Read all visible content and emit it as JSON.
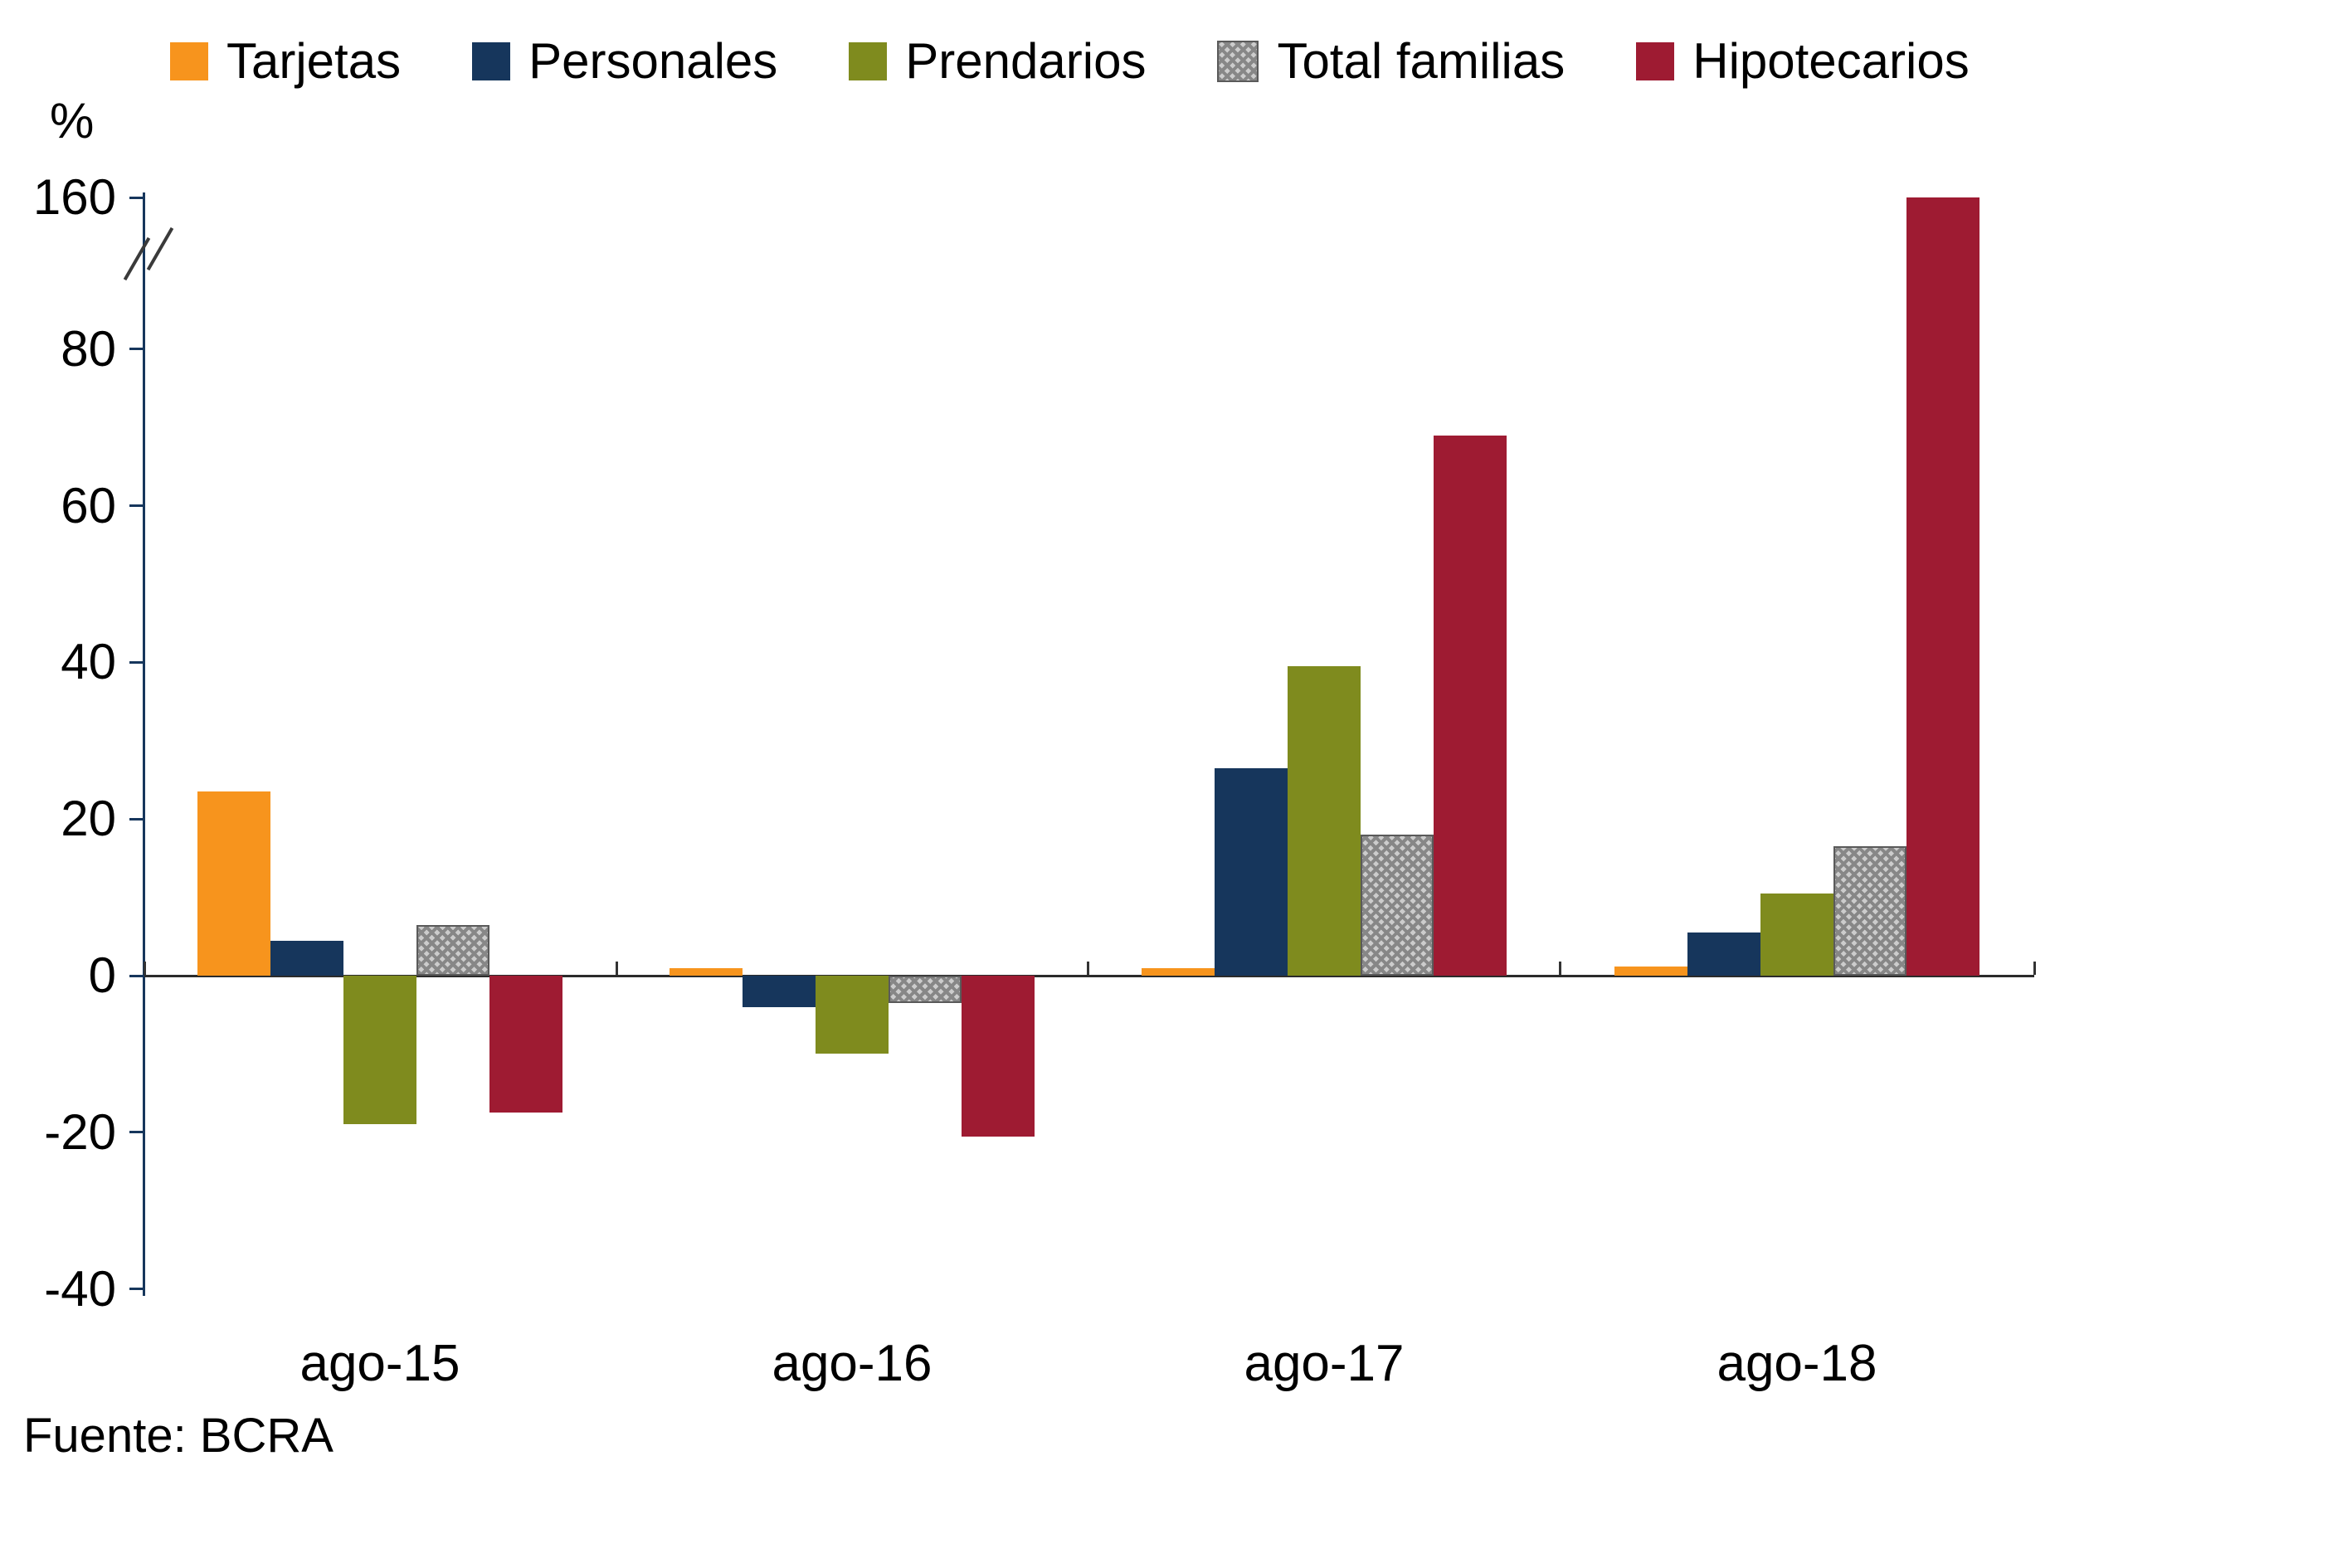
{
  "chart_data": {
    "type": "bar",
    "unit_label": "%",
    "categories": [
      "ago-15",
      "ago-16",
      "ago-17",
      "ago-18"
    ],
    "series": [
      {
        "name": "Tarjetas",
        "color": "#F7941D",
        "values": [
          23.5,
          1.0,
          1.0,
          1.2
        ]
      },
      {
        "name": "Personales",
        "color": "#16365C",
        "values": [
          4.5,
          -4.0,
          26.5,
          5.5
        ]
      },
      {
        "name": "Prendarios",
        "color": "#7F8B1E",
        "values": [
          -19.0,
          -10.0,
          39.5,
          10.5
        ]
      },
      {
        "name": "Total familias",
        "color": "#A6A6A6",
        "pattern": "crosshatch",
        "values": [
          6.5,
          -3.5,
          18.0,
          16.5
        ]
      },
      {
        "name": "Hipotecarios",
        "color": "#9E1B32",
        "values": [
          -17.5,
          -20.5,
          69.0,
          160.0
        ]
      }
    ],
    "y_ticks": [
      -40,
      -20,
      0,
      20,
      40,
      60,
      80,
      160
    ],
    "axis_break": {
      "between": [
        80,
        160
      ]
    },
    "ylim_linear": [
      -40,
      90
    ],
    "legend_position": "top",
    "grid": "off",
    "source": "Fuente: BCRA"
  }
}
